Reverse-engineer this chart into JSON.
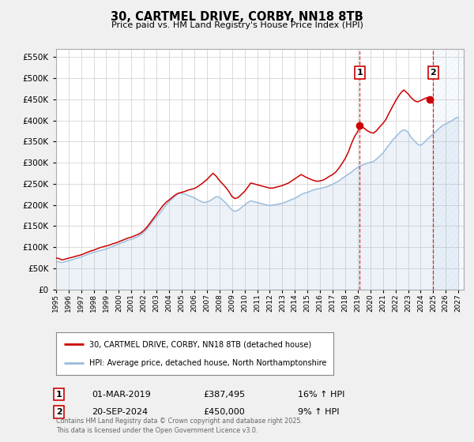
{
  "title": "30, CARTMEL DRIVE, CORBY, NN18 8TB",
  "subtitle": "Price paid vs. HM Land Registry's House Price Index (HPI)",
  "background_color": "#f0f0f0",
  "plot_background_color": "#ffffff",
  "grid_color": "#cccccc",
  "red_line_color": "#cc0000",
  "blue_line_color": "#99bbdd",
  "marker1_date": "2019-03-01",
  "marker2_date": "2024-09-20",
  "marker1_value": 387495,
  "marker2_value": 450000,
  "legend_line1": "30, CARTMEL DRIVE, CORBY, NN18 8TB (detached house)",
  "legend_line2": "HPI: Average price, detached house, North Northamptonshire",
  "footer": "Contains HM Land Registry data © Crown copyright and database right 2025.\nThis data is licensed under the Open Government Licence v3.0.",
  "ylim": [
    0,
    570000
  ],
  "ytick_step": 50000,
  "xmin": "1995-01-01",
  "xmax": "2027-06-01",
  "vline1_date": "2019-03-01",
  "vline2_date": "2025-01-01",
  "label1_x": "2019-03-01",
  "label2_x": "2025-01-01",
  "red_hpi_data": [
    [
      "1995-01-01",
      75000
    ],
    [
      "1995-04-01",
      73000
    ],
    [
      "1995-07-01",
      70000
    ],
    [
      "1995-10-01",
      72000
    ],
    [
      "1996-01-01",
      74000
    ],
    [
      "1996-04-01",
      76000
    ],
    [
      "1996-07-01",
      78000
    ],
    [
      "1996-10-01",
      80000
    ],
    [
      "1997-01-01",
      82000
    ],
    [
      "1997-04-01",
      85000
    ],
    [
      "1997-07-01",
      88000
    ],
    [
      "1997-10-01",
      91000
    ],
    [
      "1998-01-01",
      93000
    ],
    [
      "1998-04-01",
      96000
    ],
    [
      "1998-07-01",
      99000
    ],
    [
      "1998-10-01",
      101000
    ],
    [
      "1999-01-01",
      103000
    ],
    [
      "1999-04-01",
      105000
    ],
    [
      "1999-07-01",
      108000
    ],
    [
      "1999-10-01",
      110000
    ],
    [
      "2000-01-01",
      113000
    ],
    [
      "2000-04-01",
      116000
    ],
    [
      "2000-07-01",
      119000
    ],
    [
      "2000-10-01",
      122000
    ],
    [
      "2001-01-01",
      124000
    ],
    [
      "2001-04-01",
      127000
    ],
    [
      "2001-07-01",
      130000
    ],
    [
      "2001-10-01",
      134000
    ],
    [
      "2002-01-01",
      140000
    ],
    [
      "2002-04-01",
      148000
    ],
    [
      "2002-07-01",
      158000
    ],
    [
      "2002-10-01",
      168000
    ],
    [
      "2003-01-01",
      178000
    ],
    [
      "2003-04-01",
      188000
    ],
    [
      "2003-07-01",
      198000
    ],
    [
      "2003-10-01",
      206000
    ],
    [
      "2004-01-01",
      212000
    ],
    [
      "2004-04-01",
      218000
    ],
    [
      "2004-07-01",
      224000
    ],
    [
      "2004-10-01",
      228000
    ],
    [
      "2005-01-01",
      230000
    ],
    [
      "2005-04-01",
      232000
    ],
    [
      "2005-07-01",
      235000
    ],
    [
      "2005-10-01",
      237000
    ],
    [
      "2006-01-01",
      239000
    ],
    [
      "2006-04-01",
      243000
    ],
    [
      "2006-07-01",
      248000
    ],
    [
      "2006-10-01",
      254000
    ],
    [
      "2007-01-01",
      260000
    ],
    [
      "2007-04-01",
      268000
    ],
    [
      "2007-07-01",
      275000
    ],
    [
      "2007-10-01",
      268000
    ],
    [
      "2008-01-01",
      258000
    ],
    [
      "2008-04-01",
      250000
    ],
    [
      "2008-07-01",
      242000
    ],
    [
      "2008-10-01",
      232000
    ],
    [
      "2009-01-01",
      220000
    ],
    [
      "2009-04-01",
      215000
    ],
    [
      "2009-07-01",
      218000
    ],
    [
      "2009-10-01",
      225000
    ],
    [
      "2010-01-01",
      232000
    ],
    [
      "2010-04-01",
      242000
    ],
    [
      "2010-07-01",
      252000
    ],
    [
      "2010-10-01",
      250000
    ],
    [
      "2011-01-01",
      248000
    ],
    [
      "2011-04-01",
      246000
    ],
    [
      "2011-07-01",
      244000
    ],
    [
      "2011-10-01",
      242000
    ],
    [
      "2012-01-01",
      240000
    ],
    [
      "2012-04-01",
      240000
    ],
    [
      "2012-07-01",
      242000
    ],
    [
      "2012-10-01",
      244000
    ],
    [
      "2013-01-01",
      246000
    ],
    [
      "2013-04-01",
      249000
    ],
    [
      "2013-07-01",
      252000
    ],
    [
      "2013-10-01",
      257000
    ],
    [
      "2014-01-01",
      262000
    ],
    [
      "2014-04-01",
      267000
    ],
    [
      "2014-07-01",
      272000
    ],
    [
      "2014-10-01",
      268000
    ],
    [
      "2015-01-01",
      264000
    ],
    [
      "2015-04-01",
      261000
    ],
    [
      "2015-07-01",
      258000
    ],
    [
      "2015-10-01",
      256000
    ],
    [
      "2016-01-01",
      257000
    ],
    [
      "2016-04-01",
      259000
    ],
    [
      "2016-07-01",
      263000
    ],
    [
      "2016-10-01",
      268000
    ],
    [
      "2017-01-01",
      272000
    ],
    [
      "2017-04-01",
      278000
    ],
    [
      "2017-07-01",
      287000
    ],
    [
      "2017-10-01",
      298000
    ],
    [
      "2018-01-01",
      310000
    ],
    [
      "2018-04-01",
      325000
    ],
    [
      "2018-07-01",
      345000
    ],
    [
      "2018-10-01",
      362000
    ],
    [
      "2019-01-01",
      374000
    ],
    [
      "2019-03-01",
      387495
    ],
    [
      "2019-07-01",
      382000
    ],
    [
      "2019-10-01",
      376000
    ],
    [
      "2020-01-01",
      372000
    ],
    [
      "2020-04-01",
      370000
    ],
    [
      "2020-07-01",
      376000
    ],
    [
      "2020-10-01",
      385000
    ],
    [
      "2021-01-01",
      393000
    ],
    [
      "2021-04-01",
      403000
    ],
    [
      "2021-07-01",
      418000
    ],
    [
      "2021-10-01",
      432000
    ],
    [
      "2022-01-01",
      446000
    ],
    [
      "2022-04-01",
      458000
    ],
    [
      "2022-07-01",
      468000
    ],
    [
      "2022-09-01",
      472000
    ],
    [
      "2022-10-01",
      470000
    ],
    [
      "2023-01-01",
      463000
    ],
    [
      "2023-04-01",
      454000
    ],
    [
      "2023-07-01",
      447000
    ],
    [
      "2023-10-01",
      444000
    ],
    [
      "2024-01-01",
      447000
    ],
    [
      "2024-04-01",
      451000
    ],
    [
      "2024-07-01",
      454000
    ],
    [
      "2024-09-20",
      450000
    ],
    [
      "2024-10-01",
      447000
    ],
    [
      "2025-01-01",
      441000
    ]
  ],
  "blue_hpi_data": [
    [
      "1995-01-01",
      67000
    ],
    [
      "1995-04-01",
      65000
    ],
    [
      "1995-07-01",
      64000
    ],
    [
      "1995-10-01",
      66000
    ],
    [
      "1996-01-01",
      68000
    ],
    [
      "1996-04-01",
      70000
    ],
    [
      "1996-07-01",
      73000
    ],
    [
      "1996-10-01",
      75000
    ],
    [
      "1997-01-01",
      77000
    ],
    [
      "1997-04-01",
      80000
    ],
    [
      "1997-07-01",
      83000
    ],
    [
      "1997-10-01",
      86000
    ],
    [
      "1998-01-01",
      88000
    ],
    [
      "1998-04-01",
      90000
    ],
    [
      "1998-07-01",
      92000
    ],
    [
      "1998-10-01",
      94000
    ],
    [
      "1999-01-01",
      96000
    ],
    [
      "1999-04-01",
      99000
    ],
    [
      "1999-07-01",
      102000
    ],
    [
      "1999-10-01",
      105000
    ],
    [
      "2000-01-01",
      108000
    ],
    [
      "2000-04-01",
      111000
    ],
    [
      "2000-07-01",
      114000
    ],
    [
      "2000-10-01",
      117000
    ],
    [
      "2001-01-01",
      119000
    ],
    [
      "2001-04-01",
      122000
    ],
    [
      "2001-07-01",
      125000
    ],
    [
      "2001-10-01",
      130000
    ],
    [
      "2002-01-01",
      136000
    ],
    [
      "2002-04-01",
      144000
    ],
    [
      "2002-07-01",
      154000
    ],
    [
      "2002-10-01",
      164000
    ],
    [
      "2003-01-01",
      172000
    ],
    [
      "2003-04-01",
      180000
    ],
    [
      "2003-07-01",
      190000
    ],
    [
      "2003-10-01",
      200000
    ],
    [
      "2004-01-01",
      208000
    ],
    [
      "2004-04-01",
      215000
    ],
    [
      "2004-07-01",
      222000
    ],
    [
      "2004-10-01",
      228000
    ],
    [
      "2005-01-01",
      228000
    ],
    [
      "2005-04-01",
      226000
    ],
    [
      "2005-07-01",
      223000
    ],
    [
      "2005-10-01",
      220000
    ],
    [
      "2006-01-01",
      217000
    ],
    [
      "2006-04-01",
      213000
    ],
    [
      "2006-07-01",
      209000
    ],
    [
      "2006-10-01",
      206000
    ],
    [
      "2007-01-01",
      207000
    ],
    [
      "2007-04-01",
      210000
    ],
    [
      "2007-07-01",
      215000
    ],
    [
      "2007-10-01",
      220000
    ],
    [
      "2008-01-01",
      218000
    ],
    [
      "2008-04-01",
      212000
    ],
    [
      "2008-07-01",
      205000
    ],
    [
      "2008-10-01",
      196000
    ],
    [
      "2009-01-01",
      188000
    ],
    [
      "2009-04-01",
      185000
    ],
    [
      "2009-07-01",
      188000
    ],
    [
      "2009-10-01",
      194000
    ],
    [
      "2010-01-01",
      200000
    ],
    [
      "2010-04-01",
      206000
    ],
    [
      "2010-07-01",
      210000
    ],
    [
      "2010-10-01",
      208000
    ],
    [
      "2011-01-01",
      206000
    ],
    [
      "2011-04-01",
      204000
    ],
    [
      "2011-07-01",
      202000
    ],
    [
      "2011-10-01",
      200000
    ],
    [
      "2012-01-01",
      199000
    ],
    [
      "2012-04-01",
      200000
    ],
    [
      "2012-07-01",
      201000
    ],
    [
      "2012-10-01",
      203000
    ],
    [
      "2013-01-01",
      204000
    ],
    [
      "2013-04-01",
      207000
    ],
    [
      "2013-07-01",
      210000
    ],
    [
      "2013-10-01",
      213000
    ],
    [
      "2014-01-01",
      216000
    ],
    [
      "2014-04-01",
      220000
    ],
    [
      "2014-07-01",
      225000
    ],
    [
      "2014-10-01",
      228000
    ],
    [
      "2015-01-01",
      230000
    ],
    [
      "2015-04-01",
      233000
    ],
    [
      "2015-07-01",
      236000
    ],
    [
      "2015-10-01",
      238000
    ],
    [
      "2016-01-01",
      239000
    ],
    [
      "2016-04-01",
      241000
    ],
    [
      "2016-07-01",
      243000
    ],
    [
      "2016-10-01",
      246000
    ],
    [
      "2017-01-01",
      249000
    ],
    [
      "2017-04-01",
      253000
    ],
    [
      "2017-07-01",
      257000
    ],
    [
      "2017-10-01",
      263000
    ],
    [
      "2018-01-01",
      268000
    ],
    [
      "2018-04-01",
      273000
    ],
    [
      "2018-07-01",
      278000
    ],
    [
      "2018-10-01",
      284000
    ],
    [
      "2019-01-01",
      289000
    ],
    [
      "2019-04-01",
      293000
    ],
    [
      "2019-07-01",
      296000
    ],
    [
      "2019-10-01",
      299000
    ],
    [
      "2020-01-01",
      301000
    ],
    [
      "2020-04-01",
      303000
    ],
    [
      "2020-07-01",
      309000
    ],
    [
      "2020-10-01",
      316000
    ],
    [
      "2021-01-01",
      323000
    ],
    [
      "2021-04-01",
      333000
    ],
    [
      "2021-07-01",
      343000
    ],
    [
      "2021-10-01",
      353000
    ],
    [
      "2022-01-01",
      361000
    ],
    [
      "2022-04-01",
      369000
    ],
    [
      "2022-07-01",
      376000
    ],
    [
      "2022-10-01",
      378000
    ],
    [
      "2023-01-01",
      372000
    ],
    [
      "2023-04-01",
      360000
    ],
    [
      "2023-07-01",
      352000
    ],
    [
      "2023-10-01",
      344000
    ],
    [
      "2024-01-01",
      341000
    ],
    [
      "2024-04-01",
      347000
    ],
    [
      "2024-07-01",
      355000
    ],
    [
      "2024-10-01",
      362000
    ],
    [
      "2025-01-01",
      368000
    ],
    [
      "2025-04-01",
      375000
    ],
    [
      "2025-07-01",
      382000
    ],
    [
      "2025-10-01",
      388000
    ],
    [
      "2026-01-01",
      392000
    ],
    [
      "2026-04-01",
      396000
    ],
    [
      "2026-07-01",
      400000
    ],
    [
      "2026-10-01",
      405000
    ],
    [
      "2027-01-01",
      408000
    ]
  ]
}
